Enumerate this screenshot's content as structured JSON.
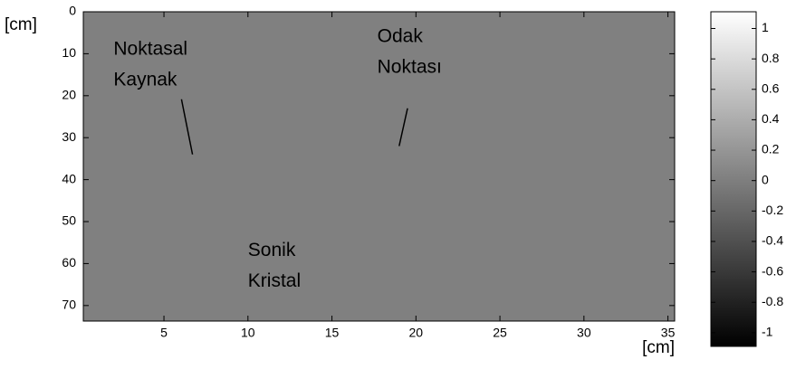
{
  "chart_data": {
    "type": "heatmap",
    "x_label": "[cm]",
    "y_label": "[cm]",
    "xlim": [
      0.2,
      35.4
    ],
    "xticks": [
      5,
      10,
      15,
      20,
      25,
      30,
      35
    ],
    "ylim": [
      0,
      73.7
    ],
    "yticks": [
      0,
      10,
      20,
      30,
      40,
      50,
      60,
      70
    ],
    "y_inverted": true,
    "colormap": "gray",
    "clim": [
      -1.09,
      1.11
    ],
    "cticks": [
      1,
      0.8,
      0.6,
      0.4,
      0.2,
      0,
      -0.2,
      -0.4,
      -0.6,
      -0.8,
      -1
    ],
    "annotations": [
      {
        "lines": [
          "Noktasal",
          "Kaynak"
        ],
        "x": 2,
        "y": 9,
        "arrow_to": [
          6.7,
          34
        ]
      },
      {
        "lines": [
          "Odak",
          "Noktası"
        ],
        "x": 17.7,
        "y": 6
      },
      {
        "lines": [
          "Sonik",
          "Kristal"
        ],
        "x": 10,
        "y": 57
      },
      {
        "lines": [],
        "x": 19.5,
        "y": 23,
        "arrow_to": [
          19,
          32
        ]
      }
    ]
  }
}
